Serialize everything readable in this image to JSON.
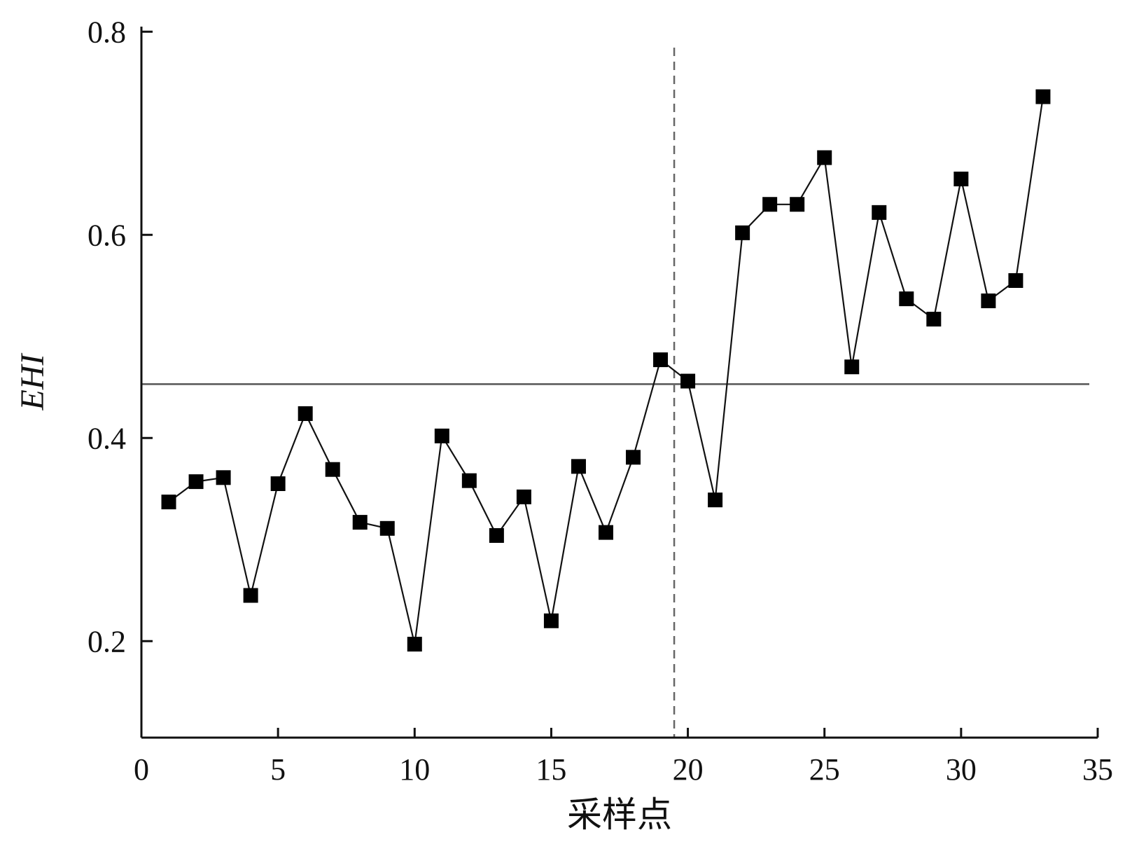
{
  "chart_data": {
    "type": "line",
    "title": "",
    "xlabel": "采样点",
    "ylabel": "EHI",
    "xlim": [
      0,
      35
    ],
    "ylim": [
      0.105,
      0.805
    ],
    "x_ticks": [
      0,
      5,
      10,
      15,
      20,
      25,
      30,
      35
    ],
    "y_ticks": [
      0.2,
      0.4,
      0.6,
      0.8
    ],
    "x_tick_labels": [
      "0",
      "5",
      "10",
      "15",
      "20",
      "25",
      "30",
      "35"
    ],
    "y_tick_labels": [
      "0.2",
      "0.4",
      "0.6",
      "0.8"
    ],
    "grid": false,
    "legend": "none",
    "series": [
      {
        "marker": "square",
        "color": "#000000",
        "x": [
          1,
          2,
          3,
          4,
          5,
          6,
          7,
          8,
          9,
          10,
          11,
          12,
          13,
          14,
          15,
          16,
          17,
          18,
          19,
          20,
          21,
          22,
          23,
          24,
          25,
          26,
          27,
          28,
          29,
          30,
          31,
          32,
          33
        ],
        "y": [
          0.337,
          0.357,
          0.361,
          0.245,
          0.355,
          0.424,
          0.369,
          0.317,
          0.311,
          0.197,
          0.402,
          0.358,
          0.304,
          0.342,
          0.22,
          0.372,
          0.307,
          0.381,
          0.477,
          0.456,
          0.339,
          0.602,
          0.63,
          0.63,
          0.676,
          0.47,
          0.622,
          0.537,
          0.517,
          0.655,
          0.535,
          0.555,
          0.736
        ]
      }
    ],
    "reference_lines": [
      {
        "orientation": "horizontal",
        "value": 0.453,
        "style": "solid",
        "color": "#555555"
      },
      {
        "orientation": "vertical",
        "value": 19.5,
        "style": "dashed",
        "color": "#666666"
      }
    ]
  }
}
